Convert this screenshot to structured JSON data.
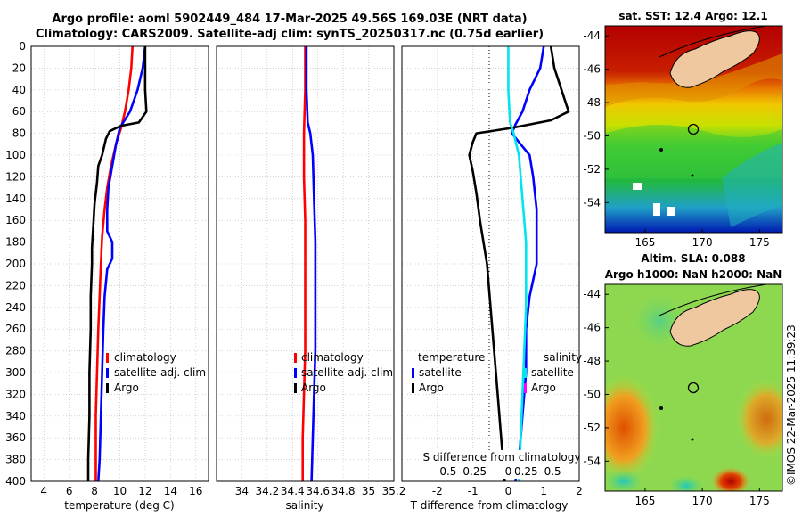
{
  "header": {
    "title_line1": "Argo profile: aoml 5902449_484 17-Mar-2025 49.56S 169.03E (NRT data)",
    "title_line2": "Climatology: CARS2009. Satellite-adj clim: synTS_20250317.nc (0.75d earlier)",
    "watermark": "©IMOS 22-Mar-2025 11:39:23"
  },
  "chart_data": [
    {
      "type": "line",
      "id": "temperature",
      "xlabel": "temperature (deg C)",
      "ylabel": "",
      "xlim": [
        3,
        17
      ],
      "ylim": [
        0,
        400
      ],
      "xticks": [
        4,
        6,
        8,
        10,
        12,
        14,
        16
      ],
      "yticks": [
        0,
        20,
        40,
        60,
        80,
        100,
        120,
        140,
        160,
        180,
        200,
        220,
        240,
        260,
        280,
        300,
        320,
        340,
        360,
        380,
        400
      ],
      "grid": true,
      "legend_position": "lower-right",
      "series": [
        {
          "name": "climatology",
          "color": "#ff0000",
          "points": [
            [
              11.0,
              0
            ],
            [
              10.9,
              20
            ],
            [
              10.7,
              40
            ],
            [
              10.4,
              60
            ],
            [
              10.1,
              75
            ],
            [
              9.7,
              90
            ],
            [
              9.3,
              110
            ],
            [
              9.0,
              130
            ],
            [
              8.8,
              150
            ],
            [
              8.6,
              175
            ],
            [
              8.5,
              200
            ],
            [
              8.4,
              230
            ],
            [
              8.3,
              260
            ],
            [
              8.2,
              300
            ],
            [
              8.1,
              340
            ],
            [
              8.1,
              400
            ]
          ]
        },
        {
          "name": "satellite-adj. clim",
          "color": "#0000ff",
          "points": [
            [
              12.0,
              0
            ],
            [
              11.8,
              20
            ],
            [
              11.4,
              40
            ],
            [
              10.8,
              60
            ],
            [
              10.0,
              75
            ],
            [
              9.7,
              90
            ],
            [
              9.4,
              110
            ],
            [
              9.1,
              130
            ],
            [
              9.0,
              150
            ],
            [
              9.0,
              170
            ],
            [
              9.4,
              180
            ],
            [
              9.4,
              195
            ],
            [
              9.0,
              205
            ],
            [
              8.8,
              230
            ],
            [
              8.7,
              260
            ],
            [
              8.6,
              300
            ],
            [
              8.5,
              340
            ],
            [
              8.4,
              380
            ],
            [
              8.3,
              400
            ]
          ]
        },
        {
          "name": "Argo",
          "color": "#000000",
          "points": [
            [
              12.0,
              0
            ],
            [
              12.0,
              20
            ],
            [
              12.0,
              40
            ],
            [
              12.1,
              60
            ],
            [
              11.5,
              70
            ],
            [
              10.1,
              73
            ],
            [
              9.2,
              78
            ],
            [
              8.9,
              85
            ],
            [
              8.6,
              100
            ],
            [
              8.3,
              110
            ],
            [
              8.2,
              125
            ],
            [
              8.0,
              145
            ],
            [
              7.9,
              165
            ],
            [
              7.8,
              185
            ],
            [
              7.8,
              200
            ],
            [
              7.7,
              230
            ],
            [
              7.7,
              260
            ],
            [
              7.6,
              300
            ],
            [
              7.6,
              340
            ],
            [
              7.5,
              380
            ],
            [
              7.5,
              400
            ]
          ]
        }
      ]
    },
    {
      "type": "line",
      "id": "salinity",
      "xlabel": "salinity",
      "ylabel": "",
      "xlim": [
        33.8,
        35.2
      ],
      "ylim": [
        0,
        400
      ],
      "xticks": [
        "34",
        "34.2",
        "34.4",
        "34.6",
        "34.8",
        "35",
        "35.2"
      ],
      "xtick_values": [
        34,
        34.2,
        34.4,
        34.6,
        34.8,
        35,
        35.2
      ],
      "grid": true,
      "legend_position": "lower-right",
      "series": [
        {
          "name": "climatology",
          "color": "#ff0000",
          "points": [
            [
              34.5,
              0
            ],
            [
              34.5,
              40
            ],
            [
              34.49,
              80
            ],
            [
              34.49,
              120
            ],
            [
              34.5,
              160
            ],
            [
              34.5,
              200
            ],
            [
              34.5,
              240
            ],
            [
              34.5,
              280
            ],
            [
              34.49,
              320
            ],
            [
              34.48,
              360
            ],
            [
              34.48,
              400
            ]
          ]
        },
        {
          "name": "satellite-adj. clim",
          "color": "#0000ff",
          "points": [
            [
              34.51,
              0
            ],
            [
              34.51,
              40
            ],
            [
              34.52,
              70
            ],
            [
              34.54,
              80
            ],
            [
              34.56,
              100
            ],
            [
              34.57,
              140
            ],
            [
              34.58,
              180
            ],
            [
              34.58,
              200
            ],
            [
              34.58,
              240
            ],
            [
              34.58,
              280
            ],
            [
              34.57,
              320
            ],
            [
              34.56,
              360
            ],
            [
              34.55,
              400
            ]
          ]
        },
        {
          "name": "Argo",
          "color": "#000000",
          "points": []
        }
      ]
    },
    {
      "type": "line",
      "id": "difference",
      "xlabel": "T difference from climatology",
      "top_axis_label": "S difference from climatology",
      "xlim": [
        -3,
        2
      ],
      "ylim": [
        0,
        400
      ],
      "xticks": [
        "-2",
        "-1",
        "0",
        "1",
        "2"
      ],
      "xtick_values": [
        -2,
        -1,
        0,
        1,
        2
      ],
      "top_ticks": [
        "-0.5",
        "-0.25",
        "0",
        "0.25",
        "0.5"
      ],
      "top_tick_values": [
        -1.75,
        -1.0,
        0,
        0.5,
        1.25
      ],
      "grid": true,
      "legend_position": "lower-center",
      "legend_headings": {
        "temperature": "temperature",
        "salinity": "salinity"
      },
      "series": [
        {
          "name": "satellite",
          "group": "temperature",
          "color": "#0000ff",
          "points": [
            [
              1.0,
              0
            ],
            [
              0.9,
              20
            ],
            [
              0.6,
              40
            ],
            [
              0.4,
              60
            ],
            [
              0.2,
              72
            ],
            [
              0.1,
              80
            ],
            [
              0.3,
              88
            ],
            [
              0.6,
              100
            ],
            [
              0.7,
              120
            ],
            [
              0.8,
              150
            ],
            [
              0.8,
              180
            ],
            [
              0.8,
              200
            ],
            [
              0.6,
              230
            ],
            [
              0.5,
              260
            ],
            [
              0.5,
              300
            ],
            [
              0.4,
              340
            ],
            [
              0.3,
              380
            ],
            [
              0.2,
              400
            ]
          ]
        },
        {
          "name": "Argo",
          "group": "temperature",
          "color": "#000000",
          "points": [
            [
              1.2,
              0
            ],
            [
              1.3,
              20
            ],
            [
              1.5,
              40
            ],
            [
              1.7,
              60
            ],
            [
              1.2,
              68
            ],
            [
              0.1,
              75
            ],
            [
              -0.9,
              80
            ],
            [
              -1.0,
              88
            ],
            [
              -1.1,
              100
            ],
            [
              -1.0,
              115
            ],
            [
              -0.9,
              135
            ],
            [
              -0.8,
              160
            ],
            [
              -0.7,
              180
            ],
            [
              -0.6,
              200
            ],
            [
              -0.5,
              240
            ],
            [
              -0.4,
              280
            ],
            [
              -0.3,
              320
            ],
            [
              -0.2,
              360
            ],
            [
              -0.1,
              400
            ]
          ]
        },
        {
          "name": "satellite",
          "group": "salinity",
          "color": "#00e5ee",
          "points": [
            [
              0.0,
              0
            ],
            [
              0.0,
              40
            ],
            [
              0.05,
              70
            ],
            [
              0.15,
              80
            ],
            [
              0.3,
              100
            ],
            [
              0.4,
              140
            ],
            [
              0.5,
              180
            ],
            [
              0.5,
              200
            ],
            [
              0.5,
              240
            ],
            [
              0.45,
              280
            ],
            [
              0.4,
              320
            ],
            [
              0.35,
              360
            ],
            [
              0.3,
              400
            ]
          ]
        },
        {
          "name": "Argo",
          "group": "salinity",
          "color": "#ff00ff",
          "points": []
        }
      ]
    },
    {
      "type": "heatmap",
      "id": "sst_map",
      "title": "sat. SST: 12.4 Argo: 12.1",
      "xticks": [
        "165",
        "170",
        "175"
      ],
      "xtick_values": [
        165,
        170,
        175
      ],
      "yticks": [
        "-44",
        "-46",
        "-48",
        "-50",
        "-52",
        "-54"
      ],
      "ytick_values": [
        -44,
        -46,
        -48,
        -50,
        -52,
        -54
      ],
      "xlim": [
        161.5,
        177
      ],
      "ylim": [
        -55.8,
        -43.4
      ],
      "marker": {
        "lon": 169.03,
        "lat": -49.56
      }
    },
    {
      "type": "heatmap",
      "id": "sla_map",
      "title": "Altim. SLA: 0.088",
      "subtitle": "Argo h1000: NaN h2000: NaN",
      "xticks": [
        "165",
        "170",
        "175"
      ],
      "xtick_values": [
        165,
        170,
        175
      ],
      "yticks": [
        "-44",
        "-46",
        "-48",
        "-50",
        "-52",
        "-54"
      ],
      "ytick_values": [
        -44,
        -46,
        -48,
        -50,
        -52,
        -54
      ],
      "xlim": [
        161.5,
        177
      ],
      "ylim": [
        -55.8,
        -43.4
      ],
      "marker": {
        "lon": 169.03,
        "lat": -49.56
      }
    }
  ]
}
